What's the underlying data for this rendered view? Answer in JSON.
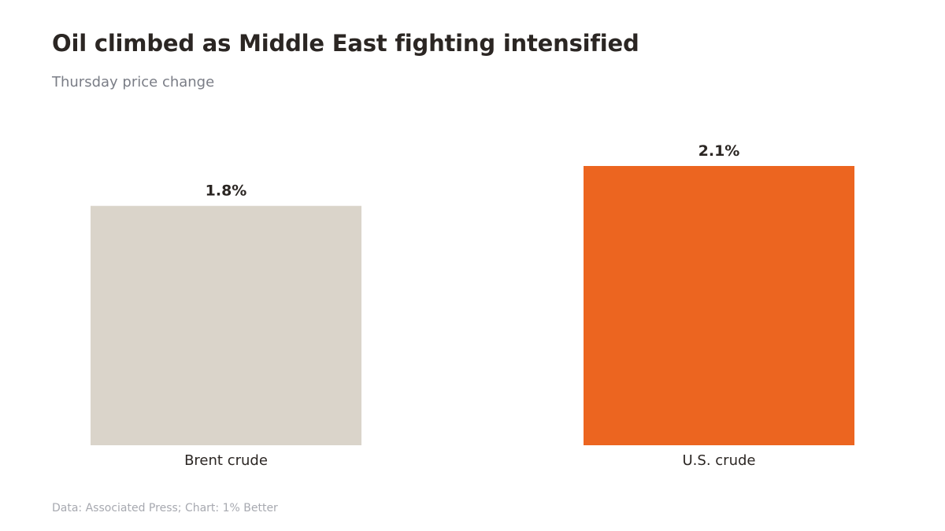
{
  "title": "Oil climbed as Middle East fighting intensified",
  "subtitle": "Thursday price change",
  "footer": "Data: Associated Press; Chart: 1% Better",
  "colors": {
    "brent": "#dad4ca",
    "us": "#ec6520",
    "text": "#2b2623",
    "muted": "#7a7d86"
  },
  "chart_data": {
    "type": "bar",
    "title": "Oil climbed as Middle East fighting intensified",
    "subtitle": "Thursday price change",
    "categories": [
      "Brent crude",
      "U.S. crude"
    ],
    "values": [
      1.8,
      2.1
    ],
    "value_labels": [
      "1.8%",
      "2.1%"
    ],
    "ylim": [
      0,
      2.1
    ],
    "grid": false,
    "legend": "none"
  }
}
